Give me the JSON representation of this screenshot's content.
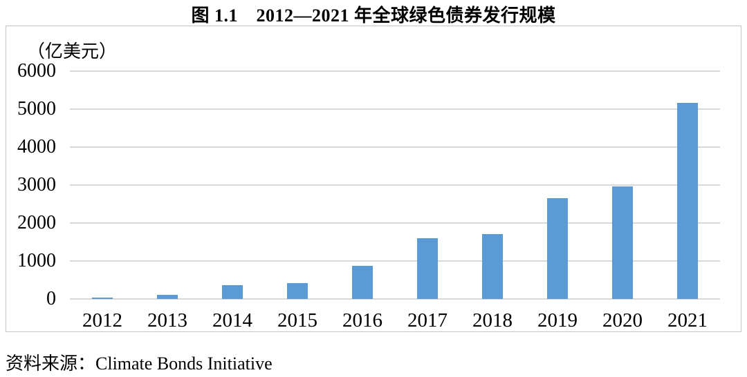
{
  "title": "图 1.1　2012—2021 年全球绿色债券发行规模",
  "source_note": "资料来源：Climate Bonds Initiative",
  "chart_data": {
    "type": "bar",
    "title": "图 1.1　2012—2021 年全球绿色债券发行规模",
    "unit_label": "（亿美元）",
    "categories": [
      "2012",
      "2013",
      "2014",
      "2015",
      "2016",
      "2017",
      "2018",
      "2019",
      "2020",
      "2021"
    ],
    "values": [
      30,
      110,
      360,
      420,
      880,
      1600,
      1700,
      2650,
      2960,
      5170
    ],
    "ylabel": "亿美元",
    "ylim": [
      0,
      6000
    ],
    "ytick_step": 1000,
    "yticks": [
      0,
      1000,
      2000,
      3000,
      4000,
      5000,
      6000
    ],
    "grid": true,
    "legend": false,
    "source": "Climate Bonds Initiative"
  },
  "colors": {
    "bar": "#5b9bd5",
    "gridline": "#d9d9d9",
    "frame_border": "#c4c4c4",
    "text": "#000000"
  }
}
